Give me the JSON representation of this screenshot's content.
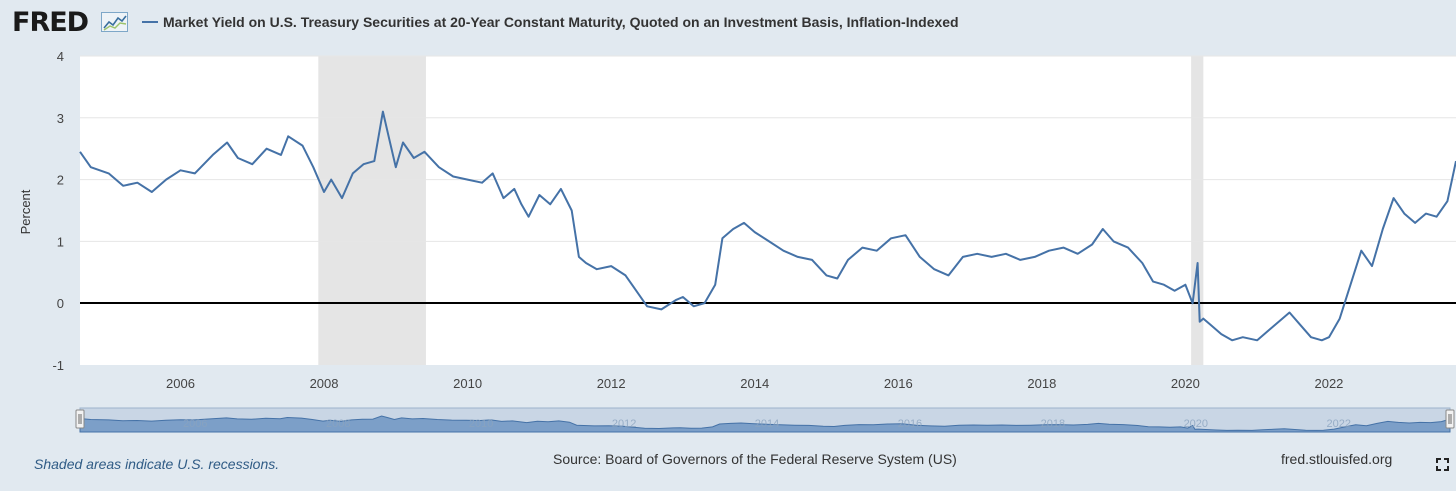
{
  "header": {
    "logo_text": "FRED",
    "title": "Market Yield on U.S. Treasury Securities at 20-Year Constant Maturity, Quoted on an Investment Basis, Inflation-Indexed",
    "series_color": "#4572a7"
  },
  "footer": {
    "note": "Shaded areas indicate U.S. recessions.",
    "source": "Source: Board of Governors of the Federal Reserve System (US)",
    "site": "fred.stlouisfed.org"
  },
  "chart_data": {
    "type": "line",
    "ylabel": "Percent",
    "xlabel": "",
    "xlim": [
      2004.6,
      2023.77
    ],
    "ylim": [
      -1,
      4
    ],
    "yticks": [
      -1,
      0,
      1,
      2,
      3,
      4
    ],
    "xticks": [
      "2006",
      "2008",
      "2010",
      "2012",
      "2014",
      "2016",
      "2018",
      "2020",
      "2022"
    ],
    "grid": true,
    "zero_line": true,
    "recessions": [
      {
        "start": 2007.92,
        "end": 2009.42
      },
      {
        "start": 2020.08,
        "end": 2020.25
      }
    ],
    "series": [
      {
        "color": "#4572a7",
        "x": [
          2004.6,
          2004.75,
          2005.0,
          2005.2,
          2005.4,
          2005.6,
          2005.8,
          2006.0,
          2006.2,
          2006.45,
          2006.65,
          2006.8,
          2007.0,
          2007.2,
          2007.4,
          2007.5,
          2007.7,
          2007.85,
          2008.0,
          2008.1,
          2008.25,
          2008.4,
          2008.55,
          2008.7,
          2008.82,
          2008.9,
          2009.0,
          2009.1,
          2009.25,
          2009.4,
          2009.6,
          2009.8,
          2010.0,
          2010.2,
          2010.35,
          2010.5,
          2010.65,
          2010.75,
          2010.85,
          2011.0,
          2011.15,
          2011.3,
          2011.45,
          2011.55,
          2011.65,
          2011.8,
          2012.0,
          2012.2,
          2012.35,
          2012.5,
          2012.7,
          2012.9,
          2013.0,
          2013.15,
          2013.3,
          2013.45,
          2013.55,
          2013.7,
          2013.85,
          2014.0,
          2014.2,
          2014.4,
          2014.6,
          2014.8,
          2015.0,
          2015.15,
          2015.3,
          2015.5,
          2015.7,
          2015.9,
          2016.1,
          2016.3,
          2016.5,
          2016.7,
          2016.9,
          2017.1,
          2017.3,
          2017.5,
          2017.7,
          2017.9,
          2018.1,
          2018.3,
          2018.5,
          2018.7,
          2018.85,
          2019.0,
          2019.2,
          2019.4,
          2019.55,
          2019.7,
          2019.85,
          2020.0,
          2020.1,
          2020.17,
          2020.2,
          2020.25,
          2020.35,
          2020.5,
          2020.65,
          2020.8,
          2021.0,
          2021.15,
          2021.3,
          2021.45,
          2021.6,
          2021.75,
          2021.9,
          2022.0,
          2022.15,
          2022.3,
          2022.45,
          2022.6,
          2022.75,
          2022.9,
          2023.05,
          2023.2,
          2023.35,
          2023.5,
          2023.65,
          2023.77
        ],
        "y": [
          2.45,
          2.2,
          2.1,
          1.9,
          1.95,
          1.8,
          2.0,
          2.15,
          2.1,
          2.4,
          2.6,
          2.35,
          2.25,
          2.5,
          2.4,
          2.7,
          2.55,
          2.2,
          1.8,
          2.0,
          1.7,
          2.1,
          2.25,
          2.3,
          3.1,
          2.7,
          2.2,
          2.6,
          2.35,
          2.45,
          2.2,
          2.05,
          2.0,
          1.95,
          2.1,
          1.7,
          1.85,
          1.6,
          1.4,
          1.75,
          1.6,
          1.85,
          1.5,
          0.75,
          0.65,
          0.55,
          0.6,
          0.45,
          0.2,
          -0.05,
          -0.1,
          0.05,
          0.1,
          -0.05,
          0.0,
          0.3,
          1.05,
          1.2,
          1.3,
          1.15,
          1.0,
          0.85,
          0.75,
          0.7,
          0.45,
          0.4,
          0.7,
          0.9,
          0.85,
          1.05,
          1.1,
          0.75,
          0.55,
          0.45,
          0.75,
          0.8,
          0.75,
          0.8,
          0.7,
          0.75,
          0.85,
          0.9,
          0.8,
          0.95,
          1.2,
          1.0,
          0.9,
          0.65,
          0.35,
          0.3,
          0.2,
          0.3,
          0.0,
          0.65,
          -0.3,
          -0.25,
          -0.35,
          -0.5,
          -0.6,
          -0.55,
          -0.6,
          -0.45,
          -0.3,
          -0.15,
          -0.35,
          -0.55,
          -0.6,
          -0.55,
          -0.25,
          0.3,
          0.85,
          0.6,
          1.2,
          1.7,
          1.45,
          1.3,
          1.45,
          1.4,
          1.65,
          2.3
        ]
      }
    ]
  }
}
